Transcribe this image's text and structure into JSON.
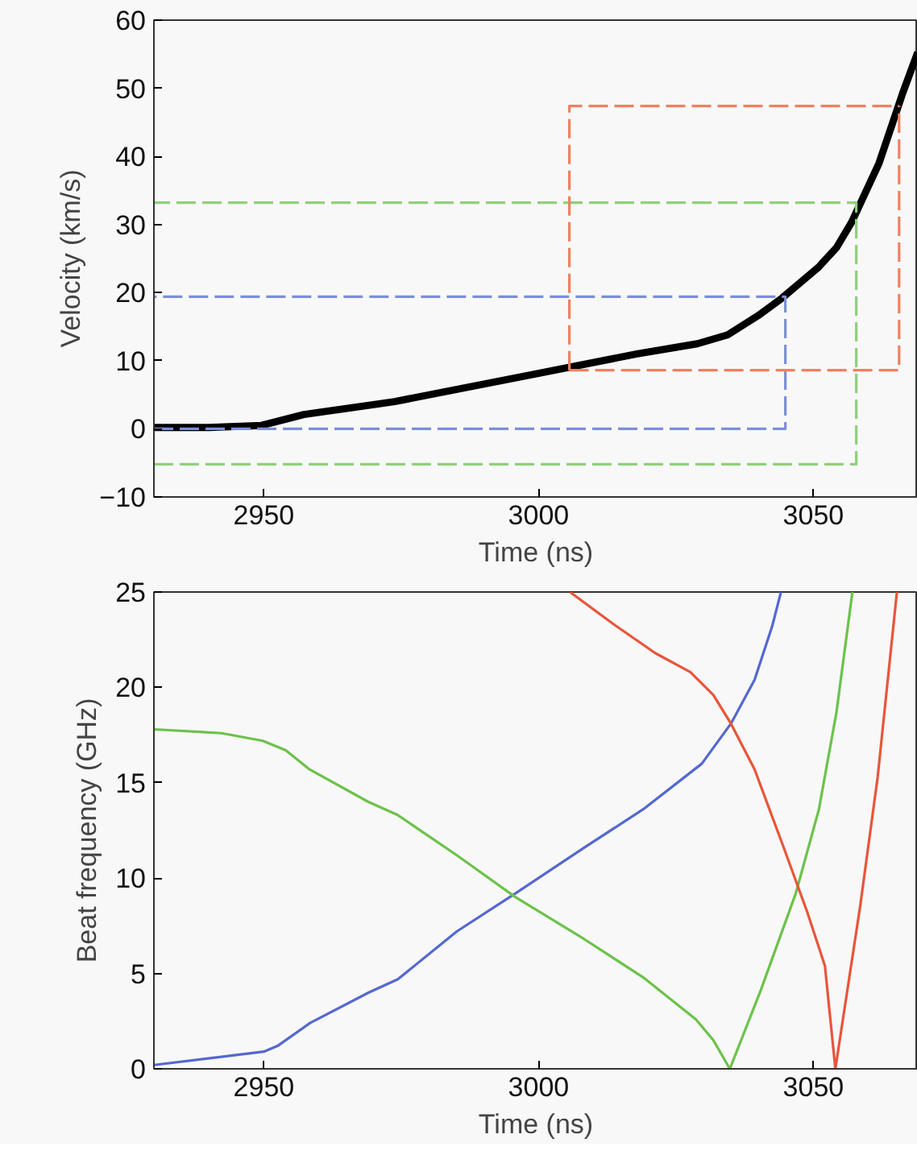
{
  "chart_data": [
    {
      "type": "line",
      "xlabel": "Time (ns)",
      "ylabel": "Velocity (km/s)",
      "xlim": [
        2930,
        3069
      ],
      "xticks": [
        2950,
        3000,
        3050
      ],
      "ylim": [
        -10,
        60
      ],
      "yticks": [
        {
          "value": -10,
          "label": "−10"
        },
        0,
        10,
        20,
        30,
        40,
        50,
        60
      ],
      "grid": false,
      "series": [
        {
          "color": "#000000",
          "line_style": "solid",
          "x": [
            2930,
            2940,
            2949.6,
            2957.3,
            2973.8,
            3000.3,
            3017.9,
            3028.9,
            3034.4,
            3039.9,
            3044.3,
            3050.9,
            3054.2,
            3057,
            3061.9,
            3066.3,
            3069
          ],
          "values": [
            0.2,
            0.2,
            0.5,
            2.1,
            4,
            8.2,
            11,
            12.5,
            13.8,
            16.6,
            19.2,
            23.7,
            26.6,
            30.4,
            38.9,
            49.4,
            55.3
          ]
        },
        {
          "color": "#7b8fd8",
          "line_style": "dashed",
          "x": [
            2930,
            3044.9,
            3044.9,
            2930
          ],
          "values": [
            0,
            0,
            19.4,
            19.4
          ]
        },
        {
          "color": "#8fd07a",
          "line_style": "dashed",
          "x": [
            2930,
            3057.8,
            3057.8,
            2930
          ],
          "values": [
            -5.2,
            -5.2,
            33.2,
            33.2
          ]
        },
        {
          "color": "#f08060",
          "line_style": "dashed",
          "x": [
            3005.6,
            3005.6,
            3065.6
          ],
          "values": [
            8.6,
            47.4,
            47.4
          ]
        },
        {
          "color": "#f08060",
          "line_style": "dashed",
          "x": [
            3005.6,
            3065.6,
            3065.6
          ],
          "values": [
            8.6,
            8.6,
            47.4
          ]
        }
      ]
    },
    {
      "type": "line",
      "xlabel": "Time (ns)",
      "ylabel": "Beat frequency (GHz)",
      "xlim": [
        2930,
        3069
      ],
      "xticks": [
        2950,
        3000,
        3050
      ],
      "ylim": [
        0,
        25
      ],
      "yticks": [
        0,
        5,
        10,
        15,
        20,
        25
      ],
      "grid": false,
      "series": [
        {
          "color": "#5468d0",
          "line_style": "solid",
          "x": [
            2930,
            2950,
            2952.5,
            2958.4,
            2969.1,
            2974.4,
            2985.1,
            2995.8,
            3008.3,
            3019,
            3029.7,
            3035,
            3039.3,
            3042.5,
            3044.1
          ],
          "values": [
            0.2,
            0.9,
            1.2,
            2.4,
            4.0,
            4.7,
            7.2,
            9.2,
            11.6,
            13.6,
            16.0,
            18.1,
            20.4,
            23.2,
            25
          ]
        },
        {
          "color": "#6cc24a",
          "line_style": "solid",
          "x": [
            2930,
            2942.3,
            2949.8,
            2954,
            2958.3,
            2969,
            2974.4,
            2985.1,
            2995.8,
            3008.3,
            3019,
            3028.6,
            3031.8,
            3034.8,
            3040.4,
            3046.8,
            3051,
            3054.2,
            3057.1
          ],
          "values": [
            17.8,
            17.6,
            17.2,
            16.7,
            15.7,
            14.0,
            13.3,
            11.2,
            9.0,
            6.8,
            4.8,
            2.6,
            1.5,
            0,
            4.1,
            9.2,
            13.6,
            18.7,
            25
          ]
        },
        {
          "color": "#e8553a",
          "line_style": "solid",
          "x": [
            3005.7,
            3013.7,
            3021.2,
            3027.6,
            3031.8,
            3035,
            3039.3,
            3044.6,
            3048.9,
            3052.1,
            3054,
            3058.5,
            3061.7,
            3065.2
          ],
          "values": [
            25,
            23.3,
            21.8,
            20.8,
            19.6,
            18.1,
            15.7,
            11.6,
            8.2,
            5.4,
            0,
            8.5,
            15.3,
            25
          ]
        }
      ]
    }
  ]
}
